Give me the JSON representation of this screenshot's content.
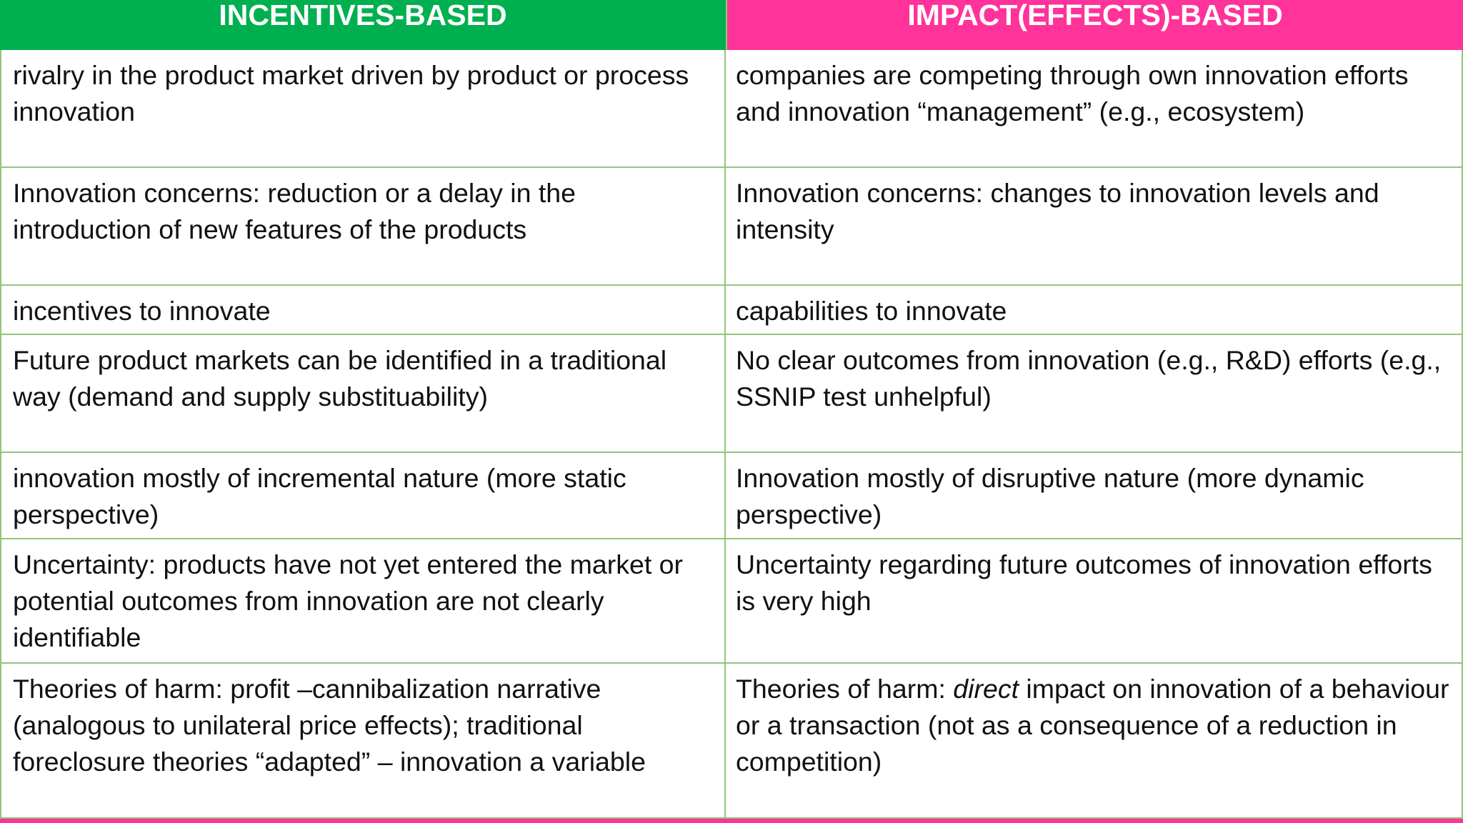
{
  "table": {
    "headers": [
      "INCENTIVES-BASED",
      "IMPACT(EFFECTS)-BASED"
    ],
    "colors": {
      "left_header": "#00af50",
      "right_header": "#ff3399",
      "grid": "#92c47e",
      "bottom_bar": "#ff3399"
    },
    "rows": [
      {
        "left": "rivalry  in the product market driven by product or process innovation",
        "right": "companies are competing through own innovation efforts and innovation “management” (e.g., ecosystem)"
      },
      {
        "left": "Innovation concerns: reduction or a delay in the introduction of new features of the products",
        "right": "Innovation concerns: changes to innovation levels and intensity"
      },
      {
        "left": "incentives to innovate",
        "right": "capabilities to innovate"
      },
      {
        "left": "Future product markets can be identified in a traditional way (demand and supply substituability)",
        "right": "No clear outcomes from innovation (e.g., R&D) efforts (e.g., SSNIP test unhelpful)"
      },
      {
        "left": "innovation mostly of incremental nature (more static perspective)",
        "right": "Innovation mostly of disruptive nature (more dynamic perspective)"
      },
      {
        "left": "Uncertainty:  products have not yet entered the market or potential outcomes from innovation are not clearly identifiable",
        "right": "Uncertainty regarding future outcomes of innovation efforts is very high"
      },
      {
        "left": "Theories of harm: profit –cannibalization narrative (analogous to unilateral price effects);  traditional foreclosure theories “adapted” – innovation a variable",
        "right_prefix": "Theories of harm: ",
        "right_emphasis": "direct",
        "right_suffix": " impact on innovation of a behaviour or a transaction  (not as a consequence of a reduction in competition)"
      }
    ]
  }
}
